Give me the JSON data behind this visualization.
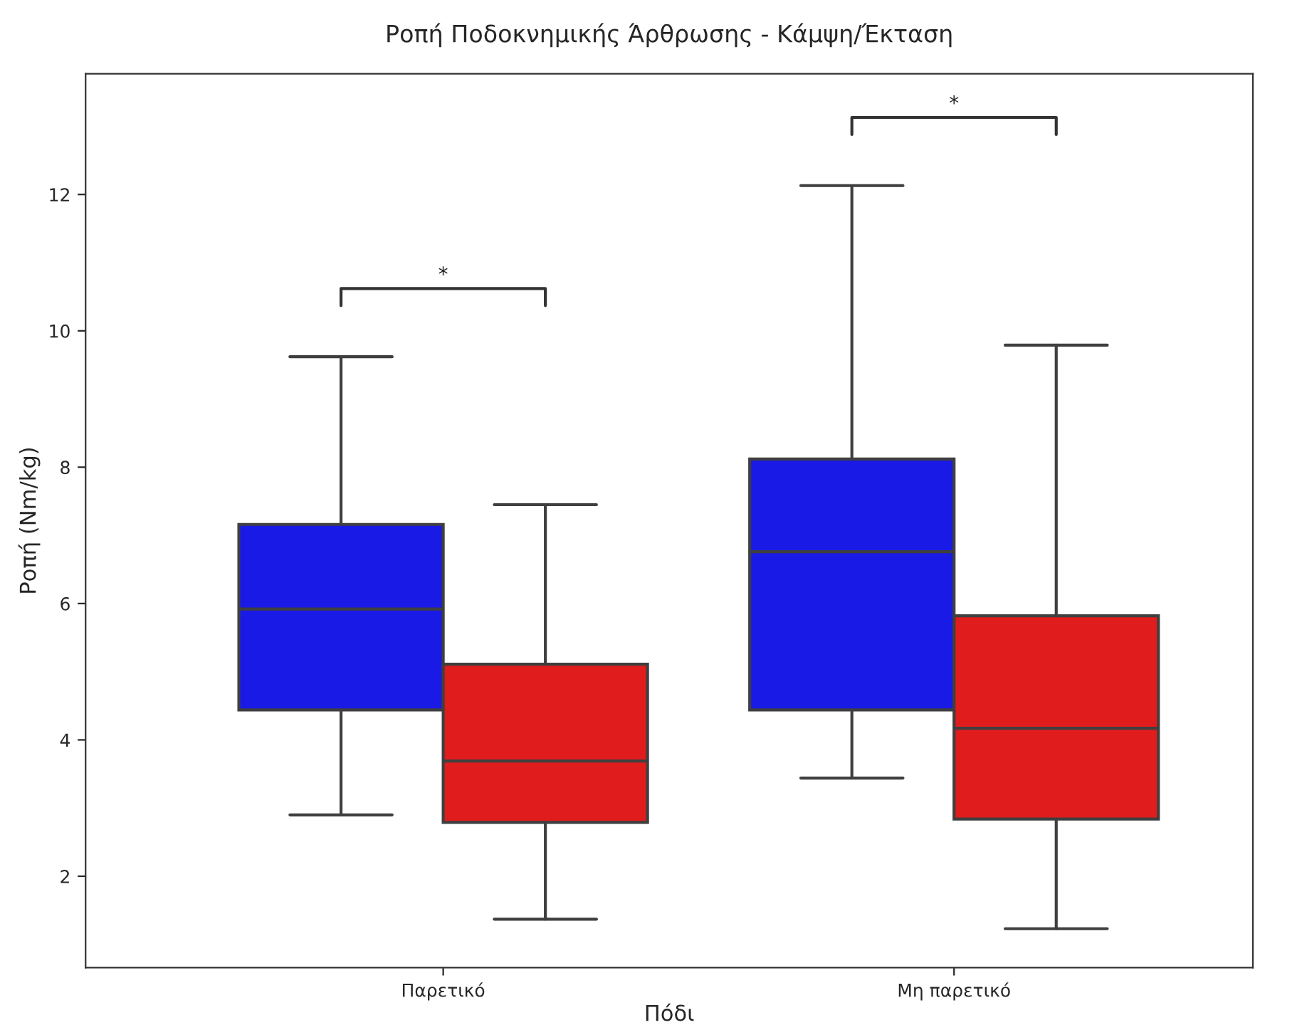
{
  "chart_data": {
    "type": "box",
    "title": "Ροπή Ποδοκνημικής Άρθρωσης - Κάμψη/Έκταση",
    "xlabel": "Πόδι",
    "ylabel": "Ροπή (Nm/kg)",
    "categories": [
      "Παρετικό",
      "Μη παρετικό"
    ],
    "series": [
      {
        "color": "#1a1ae6",
        "boxes": [
          {
            "low": 2.9,
            "q1": 4.44,
            "median": 5.92,
            "q3": 7.16,
            "high": 9.62
          },
          {
            "low": 3.44,
            "q1": 4.44,
            "median": 6.76,
            "q3": 8.12,
            "high": 12.13
          }
        ]
      },
      {
        "color": "#e01c1c",
        "boxes": [
          {
            "low": 1.37,
            "q1": 2.79,
            "median": 3.69,
            "q3": 5.11,
            "high": 7.45
          },
          {
            "low": 1.23,
            "q1": 2.84,
            "median": 4.17,
            "q3": 5.82,
            "high": 9.79
          }
        ]
      }
    ],
    "ylim": [
      0.66,
      13.77
    ],
    "yticks": [
      2,
      4,
      6,
      8,
      10,
      12
    ],
    "grid": false,
    "legend": false,
    "annotations": [
      "*",
      "*"
    ]
  }
}
